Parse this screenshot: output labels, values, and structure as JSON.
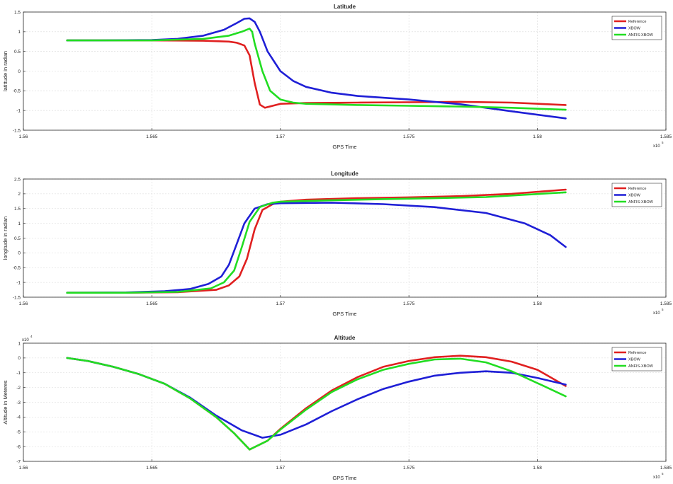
{
  "colors": {
    "reference": "#e02020",
    "xbow": "#1f1fd6",
    "anfis_xbow": "#22dd22",
    "grid": "#d8d8d8",
    "axis": "#262626"
  },
  "chart_data": [
    {
      "type": "line",
      "title": "Latitude",
      "xlabel": "GPS Time",
      "ylabel": "latittude in radian",
      "x_exponent": "x10",
      "x_exponent_power": "5",
      "xlim": [
        1.56,
        1.585
      ],
      "ylim": [
        -1.5,
        1.5
      ],
      "xticks": [
        "1.56",
        "1.565",
        "1.57",
        "1.575",
        "1.58",
        "1.585"
      ],
      "yticks": [
        "1.5",
        "1",
        "0.5",
        "0",
        "-0.5",
        "-1",
        "-1.5"
      ],
      "grid": true,
      "legend_position": "top-right",
      "series": [
        {
          "name": "Reference",
          "color_key": "reference",
          "points": [
            [
              1.5617,
              0.78
            ],
            [
              1.563,
              0.78
            ],
            [
              1.565,
              0.78
            ],
            [
              1.567,
              0.77
            ],
            [
              1.568,
              0.75
            ],
            [
              1.5683,
              0.72
            ],
            [
              1.5686,
              0.65
            ],
            [
              1.5688,
              0.4
            ],
            [
              1.569,
              -0.3
            ],
            [
              1.5692,
              -0.85
            ],
            [
              1.5694,
              -0.93
            ],
            [
              1.5697,
              -0.88
            ],
            [
              1.57,
              -0.83
            ],
            [
              1.571,
              -0.81
            ],
            [
              1.573,
              -0.8
            ],
            [
              1.575,
              -0.79
            ],
            [
              1.577,
              -0.78
            ],
            [
              1.579,
              -0.8
            ],
            [
              1.5811,
              -0.86
            ]
          ]
        },
        {
          "name": "XBOW",
          "color_key": "xbow",
          "points": [
            [
              1.5617,
              0.78
            ],
            [
              1.563,
              0.78
            ],
            [
              1.565,
              0.79
            ],
            [
              1.566,
              0.82
            ],
            [
              1.567,
              0.9
            ],
            [
              1.5678,
              1.05
            ],
            [
              1.5683,
              1.22
            ],
            [
              1.5686,
              1.33
            ],
            [
              1.5688,
              1.34
            ],
            [
              1.569,
              1.25
            ],
            [
              1.5692,
              1.0
            ],
            [
              1.5695,
              0.5
            ],
            [
              1.57,
              0.0
            ],
            [
              1.5705,
              -0.25
            ],
            [
              1.571,
              -0.4
            ],
            [
              1.572,
              -0.55
            ],
            [
              1.573,
              -0.63
            ],
            [
              1.575,
              -0.72
            ],
            [
              1.577,
              -0.84
            ],
            [
              1.579,
              -1.02
            ],
            [
              1.5811,
              -1.2
            ]
          ]
        },
        {
          "name": "ANFIS-XBOW",
          "color_key": "anfis_xbow",
          "points": [
            [
              1.5617,
              0.78
            ],
            [
              1.565,
              0.78
            ],
            [
              1.567,
              0.82
            ],
            [
              1.568,
              0.9
            ],
            [
              1.5685,
              1.0
            ],
            [
              1.5688,
              1.08
            ],
            [
              1.5689,
              1.0
            ],
            [
              1.569,
              0.7
            ],
            [
              1.5693,
              0.0
            ],
            [
              1.5696,
              -0.5
            ],
            [
              1.57,
              -0.72
            ],
            [
              1.5705,
              -0.8
            ],
            [
              1.571,
              -0.83
            ],
            [
              1.573,
              -0.86
            ],
            [
              1.575,
              -0.88
            ],
            [
              1.577,
              -0.9
            ],
            [
              1.579,
              -0.93
            ],
            [
              1.5811,
              -0.98
            ]
          ]
        }
      ]
    },
    {
      "type": "line",
      "title": "Longitude",
      "xlabel": "GPS Time",
      "ylabel": "longitude in radian",
      "x_exponent": "x10",
      "x_exponent_power": "5",
      "xlim": [
        1.56,
        1.585
      ],
      "ylim": [
        -1.5,
        2.5
      ],
      "xticks": [
        "1.56",
        "1.565",
        "1.57",
        "1.575",
        "1.58",
        "1.585"
      ],
      "yticks": [
        "2.5",
        "2",
        "1.5",
        "1",
        "0.5",
        "0",
        "-0.5",
        "-1",
        "-1.5"
      ],
      "grid": true,
      "legend_position": "top-right",
      "series": [
        {
          "name": "Reference",
          "color_key": "reference",
          "points": [
            [
              1.5617,
              -1.35
            ],
            [
              1.564,
              -1.35
            ],
            [
              1.566,
              -1.33
            ],
            [
              1.5675,
              -1.25
            ],
            [
              1.568,
              -1.1
            ],
            [
              1.5684,
              -0.8
            ],
            [
              1.5687,
              -0.2
            ],
            [
              1.569,
              0.8
            ],
            [
              1.5693,
              1.45
            ],
            [
              1.5697,
              1.65
            ],
            [
              1.57,
              1.73
            ],
            [
              1.571,
              1.8
            ],
            [
              1.573,
              1.85
            ],
            [
              1.575,
              1.88
            ],
            [
              1.577,
              1.92
            ],
            [
              1.579,
              2.0
            ],
            [
              1.5811,
              2.14
            ]
          ]
        },
        {
          "name": "XBOW",
          "color_key": "xbow",
          "points": [
            [
              1.5617,
              -1.35
            ],
            [
              1.564,
              -1.34
            ],
            [
              1.5655,
              -1.3
            ],
            [
              1.5665,
              -1.22
            ],
            [
              1.5672,
              -1.05
            ],
            [
              1.5677,
              -0.8
            ],
            [
              1.568,
              -0.4
            ],
            [
              1.5683,
              0.3
            ],
            [
              1.5686,
              1.0
            ],
            [
              1.569,
              1.5
            ],
            [
              1.5695,
              1.65
            ],
            [
              1.57,
              1.68
            ],
            [
              1.572,
              1.7
            ],
            [
              1.574,
              1.65
            ],
            [
              1.576,
              1.55
            ],
            [
              1.578,
              1.35
            ],
            [
              1.5795,
              1.0
            ],
            [
              1.5805,
              0.6
            ],
            [
              1.5811,
              0.2
            ]
          ]
        },
        {
          "name": "ANFIS-XBOW",
          "color_key": "anfis_xbow",
          "points": [
            [
              1.5617,
              -1.35
            ],
            [
              1.564,
              -1.35
            ],
            [
              1.566,
              -1.32
            ],
            [
              1.5673,
              -1.2
            ],
            [
              1.5678,
              -1.0
            ],
            [
              1.5682,
              -0.6
            ],
            [
              1.5685,
              0.2
            ],
            [
              1.5688,
              1.05
            ],
            [
              1.5692,
              1.55
            ],
            [
              1.5697,
              1.7
            ],
            [
              1.57,
              1.73
            ],
            [
              1.572,
              1.78
            ],
            [
              1.574,
              1.82
            ],
            [
              1.576,
              1.85
            ],
            [
              1.578,
              1.89
            ],
            [
              1.5811,
              2.05
            ]
          ]
        }
      ]
    },
    {
      "type": "line",
      "title": "Altitude",
      "xlabel": "GPS Time",
      "ylabel": "Altitude in Meteres",
      "x_exponent": "x10",
      "x_exponent_power": "5",
      "y_exponent": "x10",
      "y_exponent_power": "4",
      "xlim": [
        1.56,
        1.585
      ],
      "ylim": [
        -7,
        1
      ],
      "xticks": [
        "1.56",
        "1.565",
        "1.57",
        "1.575",
        "1.58",
        "1.585"
      ],
      "yticks": [
        "1",
        "0",
        "-1",
        "-2",
        "-3",
        "-4",
        "-5",
        "-6",
        "-7"
      ],
      "grid": true,
      "legend_position": "top-right",
      "series": [
        {
          "name": "Reference",
          "color_key": "reference",
          "points": [
            [
              1.5617,
              0.0
            ],
            [
              1.5625,
              -0.2
            ],
            [
              1.5635,
              -0.6
            ],
            [
              1.5645,
              -1.1
            ],
            [
              1.5655,
              -1.75
            ],
            [
              1.5665,
              -2.75
            ],
            [
              1.5675,
              -4.0
            ],
            [
              1.5682,
              -5.1
            ],
            [
              1.5688,
              -6.2
            ],
            [
              1.5695,
              -5.6
            ],
            [
              1.57,
              -4.8
            ],
            [
              1.571,
              -3.4
            ],
            [
              1.572,
              -2.2
            ],
            [
              1.573,
              -1.3
            ],
            [
              1.574,
              -0.6
            ],
            [
              1.575,
              -0.2
            ],
            [
              1.576,
              0.05
            ],
            [
              1.577,
              0.15
            ],
            [
              1.578,
              0.05
            ],
            [
              1.579,
              -0.25
            ],
            [
              1.58,
              -0.8
            ],
            [
              1.5811,
              -1.9
            ]
          ]
        },
        {
          "name": "XBOW",
          "color_key": "xbow",
          "points": [
            [
              1.5617,
              0.0
            ],
            [
              1.5625,
              -0.2
            ],
            [
              1.5635,
              -0.6
            ],
            [
              1.5645,
              -1.1
            ],
            [
              1.5655,
              -1.75
            ],
            [
              1.5665,
              -2.7
            ],
            [
              1.5675,
              -3.9
            ],
            [
              1.5685,
              -4.9
            ],
            [
              1.5693,
              -5.4
            ],
            [
              1.57,
              -5.2
            ],
            [
              1.571,
              -4.5
            ],
            [
              1.572,
              -3.6
            ],
            [
              1.573,
              -2.8
            ],
            [
              1.574,
              -2.1
            ],
            [
              1.575,
              -1.6
            ],
            [
              1.576,
              -1.2
            ],
            [
              1.577,
              -1.0
            ],
            [
              1.578,
              -0.9
            ],
            [
              1.579,
              -1.0
            ],
            [
              1.58,
              -1.35
            ],
            [
              1.5811,
              -1.8
            ]
          ]
        },
        {
          "name": "ANFIS-XBOW",
          "color_key": "anfis_xbow",
          "points": [
            [
              1.5617,
              0.0
            ],
            [
              1.5625,
              -0.2
            ],
            [
              1.5635,
              -0.6
            ],
            [
              1.5645,
              -1.1
            ],
            [
              1.5655,
              -1.75
            ],
            [
              1.5665,
              -2.75
            ],
            [
              1.5675,
              -4.0
            ],
            [
              1.5682,
              -5.1
            ],
            [
              1.5688,
              -6.2
            ],
            [
              1.5695,
              -5.6
            ],
            [
              1.57,
              -4.85
            ],
            [
              1.571,
              -3.5
            ],
            [
              1.572,
              -2.3
            ],
            [
              1.573,
              -1.45
            ],
            [
              1.574,
              -0.8
            ],
            [
              1.575,
              -0.4
            ],
            [
              1.576,
              -0.1
            ],
            [
              1.577,
              -0.05
            ],
            [
              1.578,
              -0.3
            ],
            [
              1.579,
              -0.9
            ],
            [
              1.58,
              -1.7
            ],
            [
              1.5811,
              -2.6
            ]
          ]
        }
      ]
    }
  ]
}
